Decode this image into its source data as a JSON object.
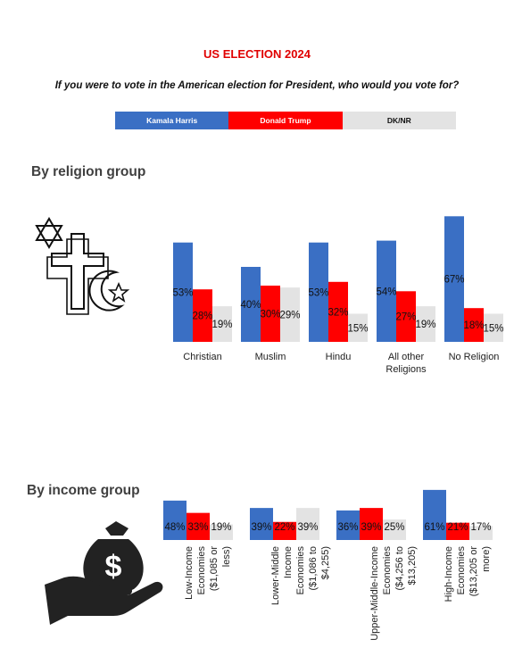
{
  "title": "US ELECTION 2024",
  "question": "If you were to vote in the American election for President, who would you vote for?",
  "legend": [
    {
      "label": "Kamala Harris",
      "color": "#3a6fc4",
      "text_color": "#ffffff"
    },
    {
      "label": "Donald Trump",
      "color": "#ff0000",
      "text_color": "#ffffff"
    },
    {
      "label": "DK/NR",
      "color": "#e3e3e3",
      "text_color": "#111111"
    }
  ],
  "sections": {
    "religion": "By religion group",
    "income": "By income group"
  },
  "icons": {
    "religion": "religious-symbols-icon",
    "income": "money-bag-hand-icon"
  },
  "chart_data": [
    {
      "type": "bar",
      "categories": [
        "Christian",
        "Muslim",
        "Hindu",
        "All other Religions",
        "No Religion"
      ],
      "series": [
        {
          "name": "Kamala Harris",
          "values": [
            53,
            40,
            53,
            54,
            67
          ]
        },
        {
          "name": "Donald Trump",
          "values": [
            28,
            30,
            32,
            27,
            18
          ]
        },
        {
          "name": "DK/NR",
          "values": [
            19,
            29,
            15,
            19,
            15
          ]
        }
      ],
      "value_suffix": "%"
    },
    {
      "type": "bar",
      "categories": [
        "Low-Income Economies ($1,085 or less)",
        "Lower-Middle Income Economies ($1,086 to $4,255)",
        "Upper-Middle-Income Economies ($4,256 to $13,205)",
        "High-Income Economies ($13,205 or more)"
      ],
      "series": [
        {
          "name": "Kamala Harris",
          "values": [
            48,
            39,
            36,
            61
          ]
        },
        {
          "name": "Donald Trump",
          "values": [
            33,
            22,
            39,
            21
          ]
        },
        {
          "name": "DK/NR",
          "values": [
            19,
            39,
            25,
            17
          ]
        }
      ],
      "value_suffix": "%"
    }
  ]
}
